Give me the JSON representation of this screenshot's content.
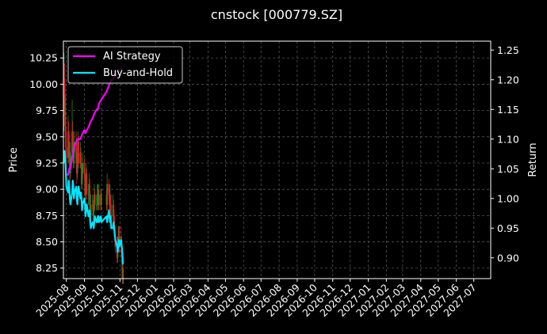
{
  "chart_data": {
    "type": "line",
    "title": "cnstock [000779.SZ]",
    "ylabel_left": "Price",
    "ylabel_right": "Return",
    "xlabel": "",
    "x_ticks": [
      "2025-08",
      "2025-09",
      "2025-10",
      "2025-11",
      "2025-12",
      "2026-01",
      "2026-02",
      "2026-03",
      "2026-04",
      "2026-05",
      "2026-06",
      "2026-07",
      "2026-08",
      "2026-09",
      "2026-10",
      "2026-11",
      "2026-12",
      "2027-01",
      "2027-02",
      "2027-03",
      "2027-04",
      "2027-05",
      "2027-06",
      "2027-07"
    ],
    "x_range": [
      "2025-07-27",
      "2027-07-30"
    ],
    "y_left_ticks": [
      "8.25",
      "8.50",
      "8.75",
      "9.00",
      "9.25",
      "9.50",
      "9.75",
      "10.00",
      "10.25"
    ],
    "y_left_range": [
      8.15,
      10.41
    ],
    "y_right_ticks": [
      "0.90",
      "0.95",
      "1.00",
      "1.05",
      "1.10",
      "1.15",
      "1.20",
      "1.25"
    ],
    "y_right_range": [
      0.865,
      1.265
    ],
    "grid": true,
    "legend_position": "top-left",
    "series": [
      {
        "name": "AI Strategy",
        "axis": "right",
        "color": "#ff00ff",
        "points": [
          [
            "2025-08-01",
            1.04
          ],
          [
            "2025-08-04",
            1.04
          ],
          [
            "2025-08-06",
            1.05
          ],
          [
            "2025-08-08",
            1.05
          ],
          [
            "2025-08-11",
            1.07
          ],
          [
            "2025-08-13",
            1.08
          ],
          [
            "2025-08-15",
            1.09
          ],
          [
            "2025-08-18",
            1.095
          ],
          [
            "2025-08-20",
            1.1
          ],
          [
            "2025-08-22",
            1.1
          ],
          [
            "2025-08-25",
            1.1
          ],
          [
            "2025-08-27",
            1.105
          ],
          [
            "2025-08-29",
            1.11
          ],
          [
            "2025-09-01",
            1.115
          ],
          [
            "2025-09-03",
            1.11
          ],
          [
            "2025-09-05",
            1.115
          ],
          [
            "2025-09-08",
            1.12
          ],
          [
            "2025-09-10",
            1.125
          ],
          [
            "2025-09-12",
            1.13
          ],
          [
            "2025-09-15",
            1.135
          ],
          [
            "2025-09-17",
            1.14
          ],
          [
            "2025-09-19",
            1.145
          ],
          [
            "2025-09-22",
            1.15
          ],
          [
            "2025-09-24",
            1.15
          ],
          [
            "2025-09-26",
            1.16
          ],
          [
            "2025-09-29",
            1.165
          ],
          [
            "2025-10-09",
            1.18
          ],
          [
            "2025-10-13",
            1.19
          ],
          [
            "2025-10-15",
            1.195
          ],
          [
            "2025-10-17",
            1.2
          ],
          [
            "2025-10-20",
            1.2
          ],
          [
            "2025-10-22",
            1.205
          ],
          [
            "2025-10-24",
            1.205
          ],
          [
            "2025-10-27",
            1.21
          ],
          [
            "2025-10-29",
            1.215
          ],
          [
            "2025-10-31",
            1.215
          ],
          [
            "2025-11-03",
            1.22
          ]
        ]
      },
      {
        "name": "Buy-and-Hold",
        "axis": "right",
        "color": "#00e5ff",
        "points": [
          [
            "2025-07-28",
            1.06
          ],
          [
            "2025-07-29",
            1.08
          ],
          [
            "2025-07-30",
            1.07
          ],
          [
            "2025-07-31",
            1.05
          ],
          [
            "2025-08-01",
            1.02
          ],
          [
            "2025-08-04",
            1.01
          ],
          [
            "2025-08-05",
            1.03
          ],
          [
            "2025-08-06",
            1.02
          ],
          [
            "2025-08-07",
            1.0
          ],
          [
            "2025-08-08",
            0.99
          ],
          [
            "2025-08-11",
            1.01
          ],
          [
            "2025-08-12",
            1.03
          ],
          [
            "2025-08-13",
            1.02
          ],
          [
            "2025-08-14",
            1.0
          ],
          [
            "2025-08-15",
            1.01
          ],
          [
            "2025-08-18",
            1.02
          ],
          [
            "2025-08-19",
            1.0
          ],
          [
            "2025-08-20",
            0.99
          ],
          [
            "2025-08-21",
            1.01
          ],
          [
            "2025-08-22",
            1.02
          ],
          [
            "2025-08-25",
            1.0
          ],
          [
            "2025-08-26",
            1.01
          ],
          [
            "2025-08-27",
            1.0
          ],
          [
            "2025-08-28",
            0.98
          ],
          [
            "2025-08-29",
            0.99
          ],
          [
            "2025-09-01",
            1.0
          ],
          [
            "2025-09-02",
            0.99
          ],
          [
            "2025-09-03",
            0.97
          ],
          [
            "2025-09-04",
            0.98
          ],
          [
            "2025-09-05",
            0.99
          ],
          [
            "2025-09-08",
            0.97
          ],
          [
            "2025-09-09",
            0.97
          ],
          [
            "2025-09-10",
            0.98
          ],
          [
            "2025-09-11",
            0.96
          ],
          [
            "2025-09-12",
            0.95
          ],
          [
            "2025-09-15",
            0.96
          ],
          [
            "2025-09-16",
            0.96
          ],
          [
            "2025-09-17",
            0.95
          ],
          [
            "2025-09-18",
            0.96
          ],
          [
            "2025-09-19",
            0.97
          ],
          [
            "2025-09-22",
            0.96
          ],
          [
            "2025-09-23",
            0.96
          ],
          [
            "2025-09-24",
            0.97
          ],
          [
            "2025-09-25",
            0.97
          ],
          [
            "2025-09-26",
            0.96
          ],
          [
            "2025-09-29",
            0.97
          ],
          [
            "2025-09-30",
            0.96
          ],
          [
            "2025-10-09",
            0.97
          ],
          [
            "2025-10-10",
            0.96
          ],
          [
            "2025-10-13",
            0.98
          ],
          [
            "2025-10-14",
            0.97
          ],
          [
            "2025-10-15",
            0.96
          ],
          [
            "2025-10-16",
            0.97
          ],
          [
            "2025-10-17",
            0.95
          ],
          [
            "2025-10-20",
            0.95
          ],
          [
            "2025-10-21",
            0.96
          ],
          [
            "2025-10-22",
            0.95
          ],
          [
            "2025-10-23",
            0.94
          ],
          [
            "2025-10-24",
            0.93
          ],
          [
            "2025-10-27",
            0.92
          ],
          [
            "2025-10-28",
            0.91
          ],
          [
            "2025-10-29",
            0.92
          ],
          [
            "2025-10-30",
            0.93
          ],
          [
            "2025-10-31",
            0.92
          ],
          [
            "2025-11-03",
            0.93
          ],
          [
            "2025-11-04",
            0.92
          ],
          [
            "2025-11-05",
            0.91
          ],
          [
            "2025-11-06",
            0.89
          ],
          [
            "2025-11-07",
            0.89
          ]
        ]
      }
    ],
    "candles": {
      "axis": "left",
      "up_color": "#228b22",
      "down_color": "#dc1e1e",
      "dates": [
        "2025-07-28",
        "2025-07-29",
        "2025-07-30",
        "2025-07-31",
        "2025-08-01",
        "2025-08-04",
        "2025-08-05",
        "2025-08-06",
        "2025-08-07",
        "2025-08-08",
        "2025-08-11",
        "2025-08-12",
        "2025-08-13",
        "2025-08-14",
        "2025-08-15",
        "2025-08-18",
        "2025-08-19",
        "2025-08-20",
        "2025-08-21",
        "2025-08-22",
        "2025-08-25",
        "2025-08-26",
        "2025-08-27",
        "2025-08-28",
        "2025-08-29",
        "2025-09-01",
        "2025-09-02",
        "2025-09-03",
        "2025-09-04",
        "2025-09-05",
        "2025-09-08",
        "2025-09-09",
        "2025-09-10",
        "2025-09-11",
        "2025-09-12",
        "2025-09-15",
        "2025-09-16",
        "2025-09-17",
        "2025-09-18",
        "2025-09-19",
        "2025-09-22",
        "2025-09-23",
        "2025-09-24",
        "2025-09-25",
        "2025-09-26",
        "2025-09-29",
        "2025-09-30",
        "2025-10-09",
        "2025-10-10",
        "2025-10-13",
        "2025-10-14",
        "2025-10-15",
        "2025-10-16",
        "2025-10-17",
        "2025-10-20",
        "2025-10-21",
        "2025-10-22",
        "2025-10-23",
        "2025-10-24",
        "2025-10-27",
        "2025-10-28",
        "2025-10-29",
        "2025-10-30",
        "2025-10-31",
        "2025-11-03",
        "2025-11-04",
        "2025-11-05",
        "2025-11-06",
        "2025-11-07"
      ],
      "open": [
        9.7,
        10.05,
        9.9,
        9.6,
        9.4,
        9.3,
        9.55,
        9.45,
        9.25,
        9.15,
        9.35,
        9.55,
        9.45,
        9.25,
        9.35,
        9.45,
        9.25,
        9.15,
        9.35,
        9.45,
        9.25,
        9.35,
        9.25,
        9.05,
        9.15,
        9.25,
        9.15,
        8.95,
        9.05,
        9.15,
        8.95,
        8.95,
        9.05,
        8.85,
        8.75,
        8.85,
        8.85,
        8.75,
        8.85,
        8.95,
        8.85,
        8.85,
        8.95,
        8.95,
        8.85,
        8.95,
        8.85,
        8.95,
        8.85,
        9.05,
        8.95,
        8.85,
        8.95,
        8.75,
        8.75,
        8.85,
        8.75,
        8.65,
        8.55,
        8.45,
        8.35,
        8.45,
        8.55,
        8.45,
        8.55,
        8.45,
        8.35,
        8.15,
        8.15
      ],
      "close": [
        10.05,
        9.9,
        9.6,
        9.4,
        9.3,
        9.55,
        9.45,
        9.25,
        9.15,
        9.35,
        9.55,
        9.45,
        9.25,
        9.35,
        9.45,
        9.25,
        9.15,
        9.35,
        9.45,
        9.25,
        9.35,
        9.25,
        9.05,
        9.15,
        9.25,
        9.15,
        8.95,
        9.05,
        9.15,
        8.95,
        8.95,
        9.05,
        8.85,
        8.75,
        8.85,
        8.85,
        8.75,
        8.85,
        8.95,
        8.85,
        8.85,
        8.95,
        8.95,
        8.85,
        8.95,
        8.85,
        8.95,
        8.85,
        9.05,
        8.95,
        8.85,
        8.95,
        8.75,
        8.75,
        8.85,
        8.75,
        8.65,
        8.55,
        8.45,
        8.35,
        8.45,
        8.55,
        8.45,
        8.55,
        8.45,
        8.35,
        8.15,
        8.15,
        8.15
      ],
      "high": [
        10.3,
        10.2,
        10.0,
        9.75,
        9.55,
        9.7,
        9.65,
        9.55,
        9.35,
        9.45,
        9.85,
        9.65,
        9.55,
        9.45,
        9.55,
        9.55,
        9.3,
        9.45,
        9.55,
        9.5,
        9.45,
        9.4,
        9.3,
        9.25,
        9.35,
        9.3,
        9.2,
        9.15,
        9.25,
        9.2,
        9.05,
        9.15,
        9.1,
        8.95,
        8.95,
        8.95,
        8.9,
        8.95,
        9.05,
        9.0,
        8.95,
        9.05,
        9.05,
        9.0,
        9.05,
        9.0,
        9.0,
        9.0,
        9.15,
        9.1,
        9.0,
        9.05,
        8.95,
        8.85,
        8.95,
        8.9,
        8.8,
        8.7,
        8.6,
        8.55,
        8.55,
        8.65,
        8.65,
        8.65,
        8.65,
        8.55,
        8.45,
        8.3,
        8.25
      ],
      "low": [
        9.55,
        9.8,
        9.5,
        9.3,
        9.2,
        9.25,
        9.35,
        9.2,
        9.05,
        9.1,
        9.3,
        9.4,
        9.2,
        9.2,
        9.3,
        9.2,
        9.05,
        9.1,
        9.3,
        9.2,
        9.2,
        9.2,
        9.0,
        9.0,
        9.1,
        9.1,
        8.9,
        8.9,
        9.0,
        8.9,
        8.85,
        8.9,
        8.8,
        8.7,
        8.7,
        8.8,
        8.7,
        8.7,
        8.8,
        8.8,
        8.8,
        8.8,
        8.85,
        8.8,
        8.8,
        8.8,
        8.8,
        8.8,
        8.8,
        8.9,
        8.8,
        8.8,
        8.7,
        8.65,
        8.7,
        8.7,
        8.6,
        8.5,
        8.4,
        8.3,
        8.3,
        8.4,
        8.4,
        8.4,
        8.4,
        8.3,
        8.1,
        8.1,
        8.1
      ]
    }
  }
}
